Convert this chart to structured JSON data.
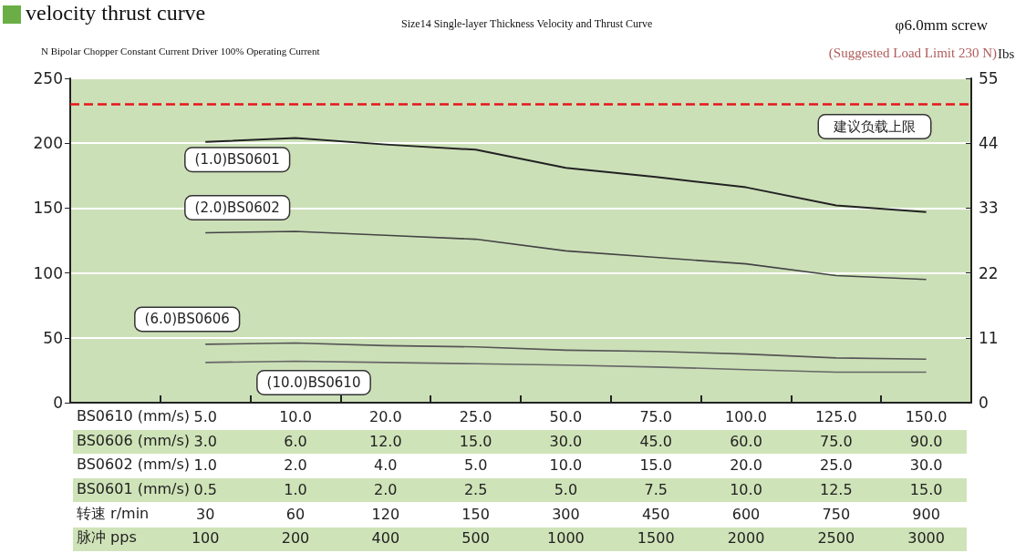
{
  "chart_data": {
    "type": "line",
    "title": "velocity thrust curve",
    "subtitle": "Size14 Single-layer Thickness Velocity and Thrust Curve",
    "annotations": [
      "φ6.0mm screw",
      "N Bipolar Chopper Constant Current Driver 100% Operating Current",
      "(Suggested Load Limit 230 N)"
    ],
    "xlabel": "BS0610 (mm/s)\nBS0606 (mm/s)\nBS0602 (mm/s)\nBS0601 (mm/s)\n转速 r/min\n脉冲 pps",
    "y2label": "Ibs",
    "categories": [
      "5.0\n3.0\n1.0\n0.5\n30\n100",
      "10.0\n6.0\n2.0\n1.0\n60\n200",
      "20.0\n12.0\n4.0\n2.0\n120\n400",
      "25.0\n15.0\n5.0\n2.5\n150\n500",
      "50.0\n30.0\n10.0\n5.0\n300\n1000",
      "75.0\n45.0\n15.0\n7.5\n450\n1500",
      "100.0\n60.0\n20.0\n10.0\n600\n2000",
      "125.0\n75.0\n25.0\n12.5\n750\n2500",
      "150.0\n90.0\n30.0\n15.0\n900\n3000"
    ],
    "series": [
      {
        "name": "(1.0)BS0601",
        "color": "#222222",
        "values": [
          201,
          204,
          199,
          195,
          181,
          174,
          166,
          152,
          147
        ]
      },
      {
        "name": "(2.0)BS0602",
        "color": "#444444",
        "values": [
          131,
          132,
          129,
          126,
          117,
          112,
          107,
          98,
          95
        ]
      },
      {
        "name": "(6.0)BS0606",
        "color": "#555555",
        "values": [
          45,
          46,
          44,
          43,
          40.5,
          39.5,
          37.5,
          34.5,
          33.5
        ]
      },
      {
        "name": "(10.0)BS0610",
        "color": "#666666",
        "values": [
          31,
          32,
          31,
          30,
          29,
          27.5,
          25.5,
          23.5,
          23.5
        ]
      }
    ],
    "ylim": [
      0,
      250
    ],
    "yticks": [
      0,
      50,
      100,
      150,
      200,
      250
    ],
    "y2lim": [
      0,
      55
    ],
    "y2ticks": [
      0,
      11,
      22,
      33,
      44,
      55
    ],
    "ref_lines": [
      {
        "axis": "y",
        "value": 230,
        "label": "建议负载上限",
        "color": "#e8141b",
        "line_style": "dashed"
      }
    ],
    "grid": "y",
    "legend": false,
    "marker": "none",
    "line_style": "solid"
  }
}
